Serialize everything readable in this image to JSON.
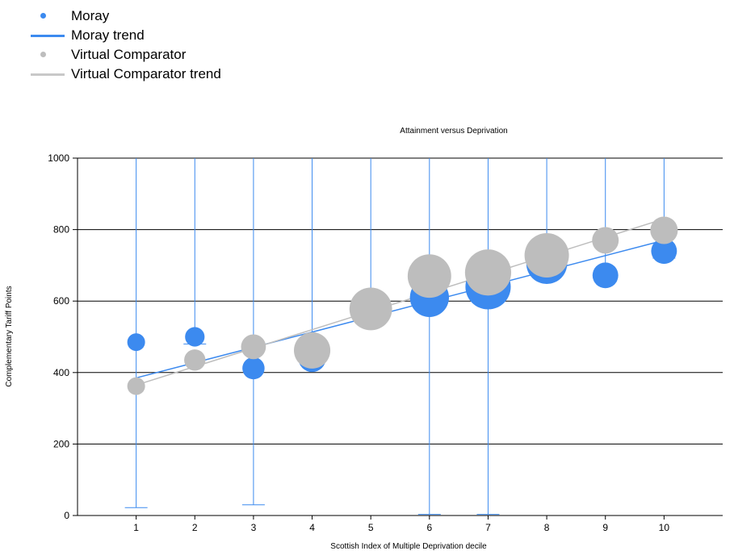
{
  "legend": [
    {
      "label": "Moray",
      "kind": "dot",
      "color": "#3c8aef"
    },
    {
      "label": "Moray trend",
      "kind": "line",
      "color": "#3c8aef"
    },
    {
      "label": "Virtual Comparator",
      "kind": "dot",
      "color": "#bdbdbd"
    },
    {
      "label": "Virtual Comparator trend",
      "kind": "line",
      "color": "#bdbdbd"
    }
  ],
  "chart_data": {
    "type": "scatter",
    "title": "Attainment versus Deprivation",
    "xlabel": "Scottish Index of Multiple Deprivation decile",
    "ylabel": "Complementary Tariff Points",
    "xlim": [
      0,
      11
    ],
    "ylim": [
      0,
      1000
    ],
    "xticks": [
      1,
      2,
      3,
      4,
      5,
      6,
      7,
      8,
      9,
      10
    ],
    "yticks": [
      0,
      200,
      400,
      600,
      800,
      1000
    ],
    "grid": "horizontal",
    "legend_position": "top-left",
    "series": [
      {
        "name": "Moray",
        "color": "#3c8aef",
        "x": [
          1,
          2,
          3,
          4,
          5,
          6,
          7,
          8,
          9,
          10
        ],
        "y": [
          485,
          500,
          412,
          440,
          580,
          610,
          640,
          705,
          672,
          740
        ],
        "relative_size": [
          1.0,
          1.1,
          1.25,
          1.55,
          2.3,
          2.2,
          2.55,
          2.3,
          1.45,
          1.45
        ],
        "error_low": [
          22,
          480,
          30,
          420,
          560,
          3,
          3,
          680,
          655,
          720
        ],
        "error_high": [
          1000,
          1000,
          1000,
          1000,
          1000,
          1000,
          1000,
          1000,
          1000,
          1000
        ]
      },
      {
        "name": "Virtual Comparator",
        "color": "#bdbdbd",
        "x": [
          1,
          2,
          3,
          4,
          5,
          6,
          7,
          8,
          9,
          10
        ],
        "y": [
          362,
          435,
          472,
          462,
          578,
          670,
          680,
          728,
          770,
          798
        ],
        "relative_size": [
          1.0,
          1.2,
          1.4,
          2.05,
          2.4,
          2.45,
          2.6,
          2.5,
          1.5,
          1.55
        ]
      }
    ],
    "trends": [
      {
        "name": "Moray trend",
        "color": "#3c8aef",
        "x": [
          1,
          10
        ],
        "y": [
          385,
          770
        ]
      },
      {
        "name": "Virtual Comparator trend",
        "color": "#bdbdbd",
        "x": [
          1,
          10
        ],
        "y": [
          365,
          830
        ]
      }
    ]
  }
}
